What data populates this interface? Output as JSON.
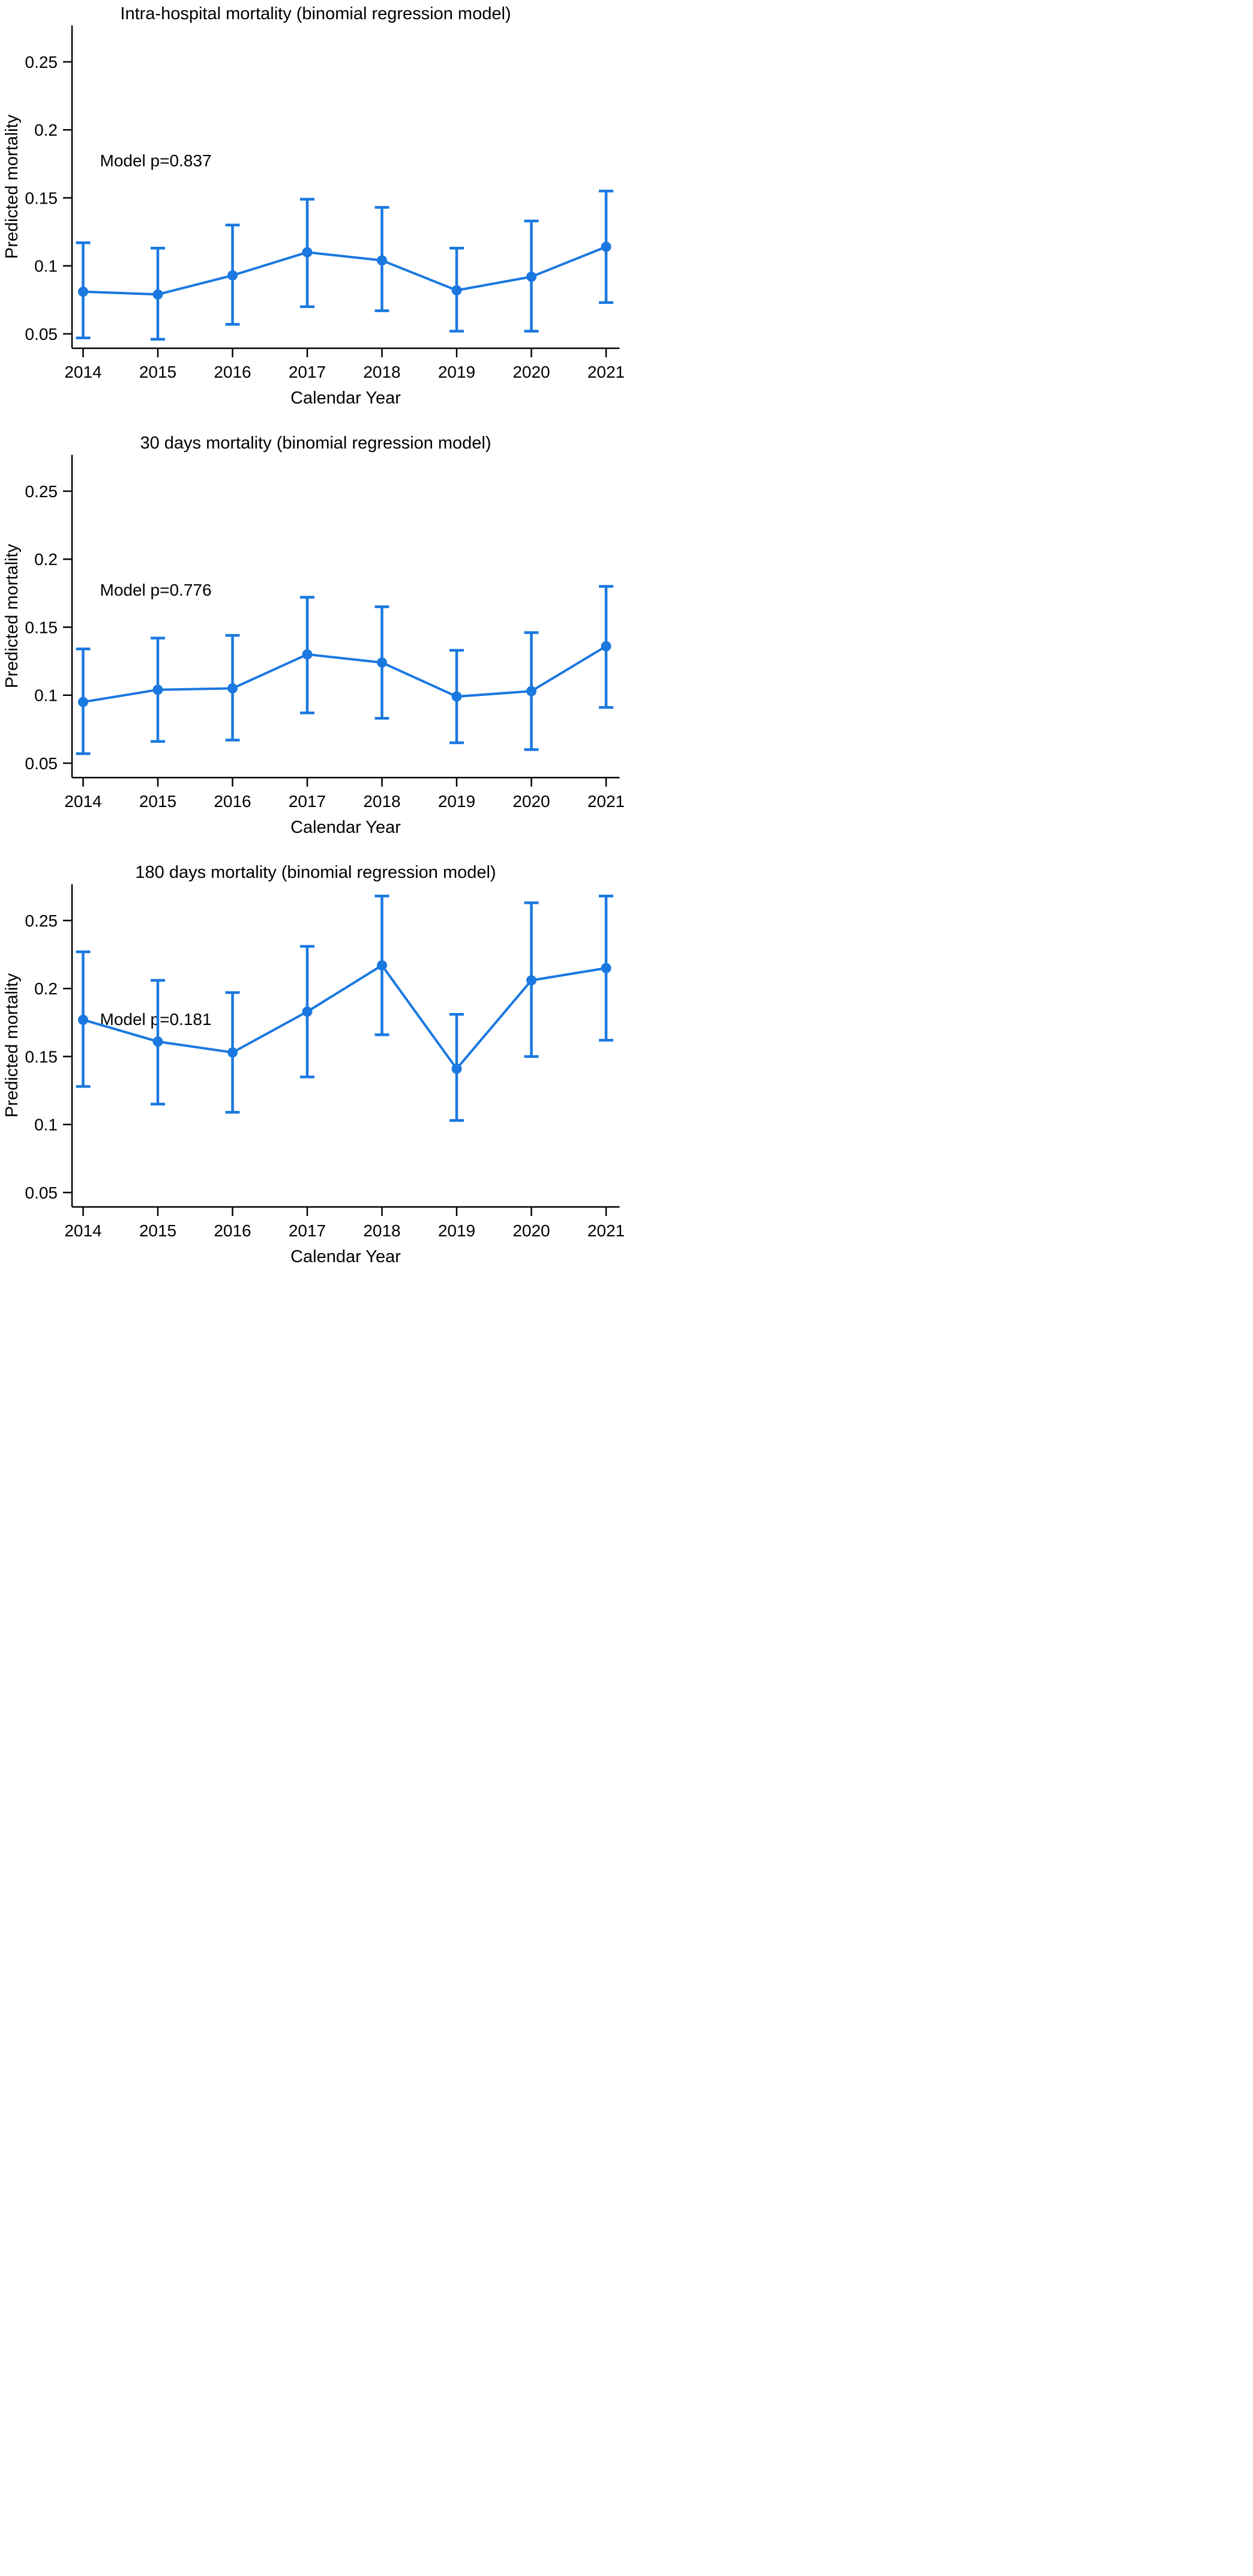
{
  "colors": {
    "series": "#1A78E0",
    "axis": "#000000",
    "text": "#000000",
    "background": "#ffffff"
  },
  "chart_data": [
    {
      "type": "line",
      "title": "Intra-hospital mortality (binomial regression model)",
      "annotation": "Model p=0.837",
      "xlabel": "Calendar Year",
      "ylabel": "Predicted mortality",
      "x": [
        2014,
        2015,
        2016,
        2017,
        2018,
        2019,
        2020,
        2021
      ],
      "x_tick_labels": [
        "2014",
        "2015",
        "2016",
        "2017",
        "2018",
        "2019",
        "2020",
        "2021"
      ],
      "yticks": [
        0.25,
        0.2,
        0.15,
        0.1,
        0.05
      ],
      "y_tick_labels": [
        "0.25",
        "0.2",
        "0.15",
        "0.1",
        "0.05"
      ],
      "ylim": [
        0.039,
        0.277
      ],
      "grid": false,
      "legend_position": "none",
      "marker": "circle",
      "error_bars": true,
      "series": [
        {
          "name": "predicted_mortality",
          "values": [
            0.081,
            0.079,
            0.093,
            0.11,
            0.104,
            0.082,
            0.092,
            0.114
          ],
          "ci_low": [
            0.047,
            0.046,
            0.057,
            0.07,
            0.067,
            0.052,
            0.052,
            0.073
          ],
          "ci_high": [
            0.117,
            0.113,
            0.13,
            0.149,
            0.143,
            0.113,
            0.133,
            0.155
          ]
        }
      ]
    },
    {
      "type": "line",
      "title": "30 days mortality (binomial regression model)",
      "annotation": "Model p=0.776",
      "xlabel": "Calendar Year",
      "ylabel": "Predicted mortality",
      "x": [
        2014,
        2015,
        2016,
        2017,
        2018,
        2019,
        2020,
        2021
      ],
      "x_tick_labels": [
        "2014",
        "2015",
        "2016",
        "2017",
        "2018",
        "2019",
        "2020",
        "2021"
      ],
      "yticks": [
        0.25,
        0.2,
        0.15,
        0.1,
        0.05
      ],
      "y_tick_labels": [
        "0.25",
        "0.2",
        "0.15",
        "0.1",
        "0.05"
      ],
      "ylim": [
        0.039,
        0.277
      ],
      "grid": false,
      "legend_position": "none",
      "marker": "circle",
      "error_bars": true,
      "series": [
        {
          "name": "predicted_mortality",
          "values": [
            0.095,
            0.104,
            0.105,
            0.13,
            0.124,
            0.099,
            0.103,
            0.136
          ],
          "ci_low": [
            0.057,
            0.066,
            0.067,
            0.087,
            0.083,
            0.065,
            0.06,
            0.091
          ],
          "ci_high": [
            0.134,
            0.142,
            0.144,
            0.172,
            0.165,
            0.133,
            0.146,
            0.18
          ]
        }
      ]
    },
    {
      "type": "line",
      "title": "180 days mortality (binomial regression model)",
      "annotation": "Model p=0.181",
      "xlabel": "Calendar Year",
      "ylabel": "Predicted mortality",
      "x": [
        2014,
        2015,
        2016,
        2017,
        2018,
        2019,
        2020,
        2021
      ],
      "x_tick_labels": [
        "2014",
        "2015",
        "2016",
        "2017",
        "2018",
        "2019",
        "2020",
        "2021"
      ],
      "yticks": [
        0.25,
        0.2,
        0.15,
        0.1,
        0.05
      ],
      "y_tick_labels": [
        "0.25",
        "0.2",
        "0.15",
        "0.1",
        "0.05"
      ],
      "ylim": [
        0.039,
        0.277
      ],
      "grid": false,
      "legend_position": "none",
      "marker": "circle",
      "error_bars": true,
      "series": [
        {
          "name": "predicted_mortality",
          "values": [
            0.177,
            0.161,
            0.153,
            0.183,
            0.217,
            0.141,
            0.206,
            0.215
          ],
          "ci_low": [
            0.128,
            0.115,
            0.109,
            0.135,
            0.166,
            0.103,
            0.15,
            0.162
          ],
          "ci_high": [
            0.227,
            0.206,
            0.197,
            0.231,
            0.268,
            0.181,
            0.263,
            0.268
          ]
        }
      ]
    }
  ]
}
